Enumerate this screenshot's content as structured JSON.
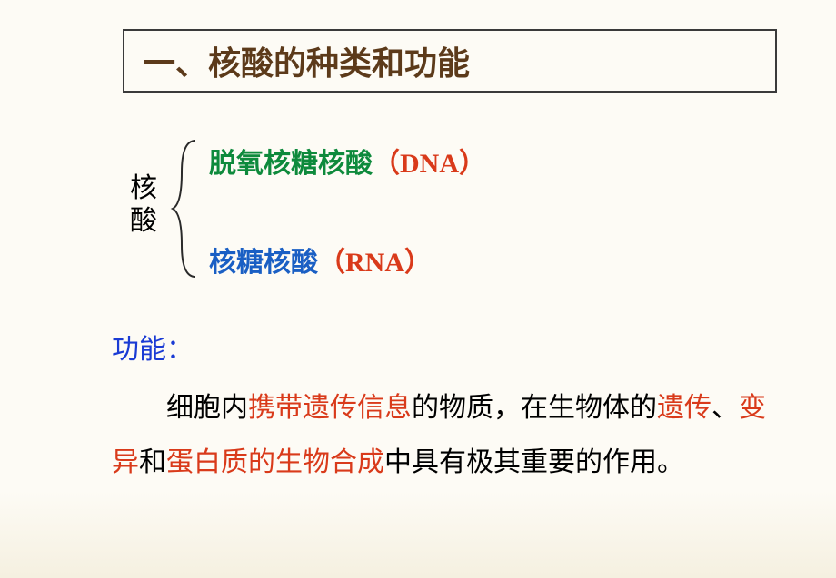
{
  "title": {
    "text": "一、核酸的种类和功能",
    "color": "#5c3a1a",
    "fontsize": 36,
    "border_color": "#3a3a3a",
    "box_bg": "#fdfbf5"
  },
  "nucleic_label": {
    "char1": "核",
    "char2": "酸",
    "color": "#000000",
    "fontsize": 30
  },
  "brace": {
    "color": "#2a2a2a",
    "stroke_width": 2
  },
  "types": {
    "dna": {
      "name": "脱氧核糖核酸",
      "name_color": "#0e8a3c",
      "abbr": "（DNA）",
      "abbr_color": "#d93a1a",
      "fontsize": 30
    },
    "rna": {
      "name": "核糖核酸",
      "name_color": "#1a5fc4",
      "abbr": "（RNA）",
      "abbr_color": "#d93a1a",
      "fontsize": 30
    }
  },
  "function": {
    "label": "功能：",
    "label_color": "#1a3bd4",
    "body_parts": [
      {
        "text": "细胞内",
        "color": "#000000"
      },
      {
        "text": "携带遗传信息",
        "color": "#d93a1a"
      },
      {
        "text": "的物质，在生物体的",
        "color": "#000000"
      },
      {
        "text": "遗传",
        "color": "#d93a1a"
      },
      {
        "text": "、",
        "color": "#000000"
      },
      {
        "text": "变异",
        "color": "#d93a1a"
      },
      {
        "text": "和",
        "color": "#000000"
      },
      {
        "text": "蛋白质的生物合成",
        "color": "#d93a1a"
      },
      {
        "text": "中具有极其重要的作用。",
        "color": "#000000"
      }
    ],
    "fontsize": 30,
    "line_height": 2
  },
  "background": {
    "top_color": "#fdfbf5",
    "bottom_color": "#f5f0e0"
  }
}
